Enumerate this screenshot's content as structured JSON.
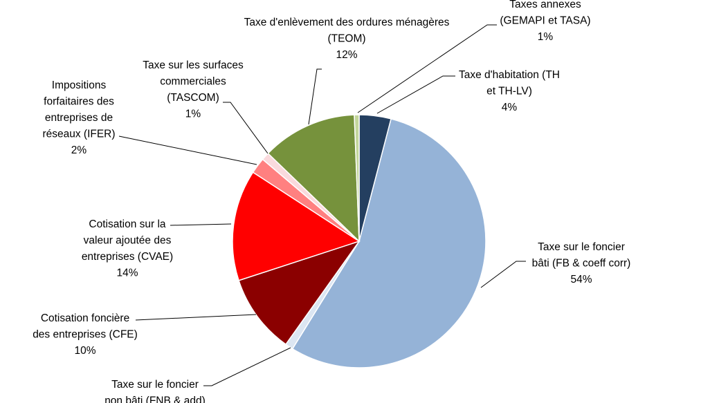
{
  "chart_data": {
    "type": "pie",
    "title": "",
    "slices": [
      {
        "label": "Taxe d'habitation (TH et TH-LV)",
        "lines": [
          "Taxe d'habitation (TH",
          "et TH-LV)"
        ],
        "pct_label": "4%",
        "value": 4,
        "color": "#243f60"
      },
      {
        "label": "Taxe sur le foncier bâti (FB & coeff corr)",
        "lines": [
          "Taxe sur le foncier",
          "bâti (FB & coeff corr)"
        ],
        "pct_label": "54%",
        "value": 54,
        "color": "#95b3d7"
      },
      {
        "label": "Taxe sur le foncier non bâti (FNB & add)",
        "lines": [
          "Taxe sur le foncier",
          "non bâti (FNB & add)"
        ],
        "pct_label": "",
        "value": 1,
        "color": "#dce6f2"
      },
      {
        "label": "Cotisation foncière des entreprises (CFE)",
        "lines": [
          "Cotisation foncière",
          "des entreprises (CFE)"
        ],
        "pct_label": "10%",
        "value": 10,
        "color": "#8b0000"
      },
      {
        "label": "Cotisation sur la valeur ajoutée des entreprises (CVAE)",
        "lines": [
          "Cotisation sur la",
          "valeur ajoutée des",
          "entreprises (CVAE)"
        ],
        "pct_label": "14%",
        "value": 14,
        "color": "#ff0000"
      },
      {
        "label": "Impositions forfaitaires des entreprises de réseaux (IFER)",
        "lines": [
          "Impositions",
          "forfaitaires des",
          "entreprises de",
          "réseaux (IFER)"
        ],
        "pct_label": "2%",
        "value": 2,
        "color": "#ff8080"
      },
      {
        "label": "Taxe sur les surfaces commerciales (TASCOM)",
        "lines": [
          "Taxe sur les surfaces",
          "commerciales",
          "(TASCOM)"
        ],
        "pct_label": "1%",
        "value": 1,
        "color": "#fadadd"
      },
      {
        "label": "Taxe d'enlèvement des ordures ménagères (TEOM)",
        "lines": [
          "Taxe d'enlèvement des ordures ménagères",
          "(TEOM)"
        ],
        "pct_label": "12%",
        "value": 12,
        "color": "#76923c"
      },
      {
        "label": "Taxes annexes (GEMAPI et TASA)",
        "lines": [
          "Taxes annexes",
          "(GEMAPI et TASA)"
        ],
        "pct_label": "1%",
        "value": 0.6,
        "color": "#c3d69b"
      }
    ]
  }
}
